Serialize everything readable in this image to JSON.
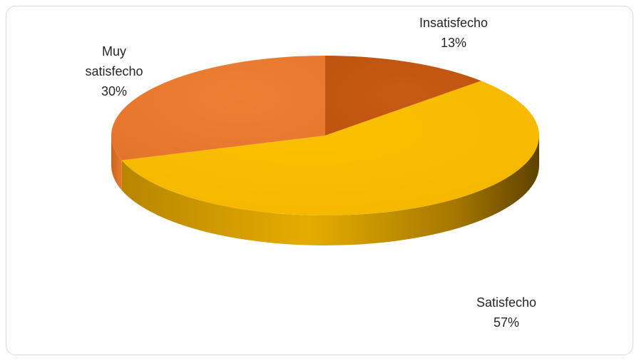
{
  "chart_data": {
    "type": "pie",
    "style": "3d",
    "title": "",
    "slices": [
      {
        "label": "Insatisfecho",
        "value": 13,
        "value_label": "13%",
        "color": "#c55a11"
      },
      {
        "label": "Satisfecho",
        "value": 57,
        "value_label": "57%",
        "color": "#f7bc00"
      },
      {
        "label": "Muy satisfecho",
        "value": 30,
        "value_label": "30%",
        "color": "#ed7d31"
      }
    ],
    "legend": "none",
    "data_labels": "outside"
  }
}
